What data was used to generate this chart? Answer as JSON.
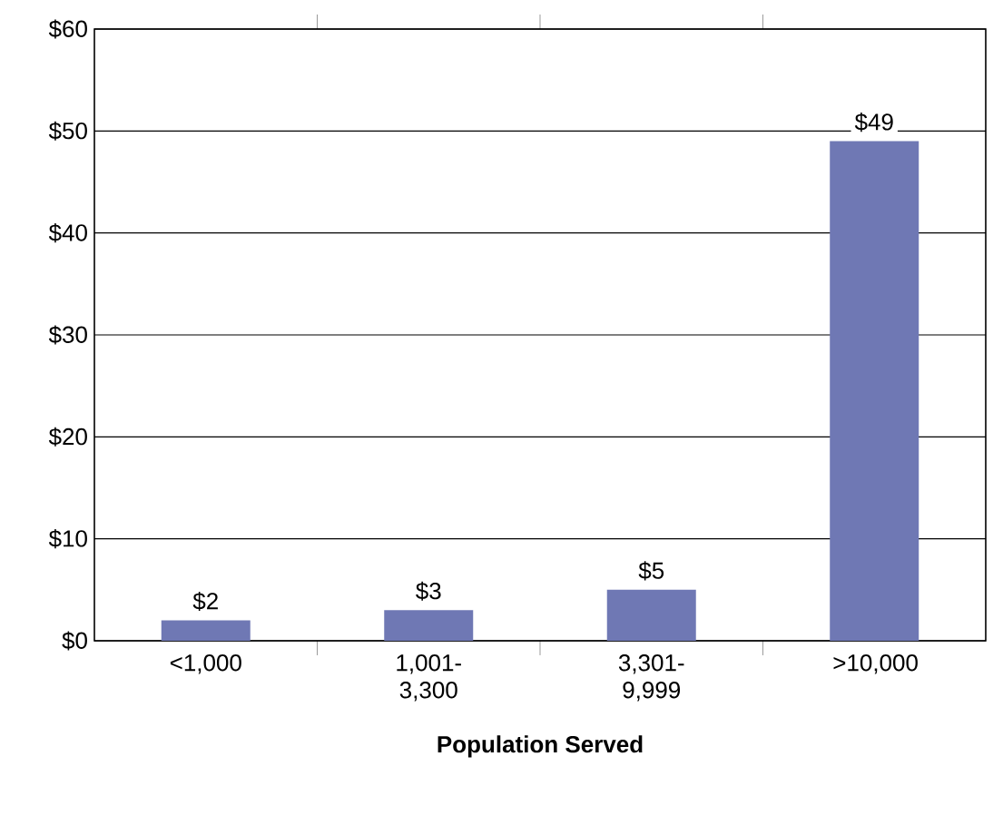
{
  "chart_data": {
    "type": "bar",
    "xlabel": "Population Served",
    "categories": [
      "<1,000",
      "1,001-3,300",
      "3,301-9,999",
      ">10,000"
    ],
    "values": [
      2,
      3,
      5,
      49
    ],
    "value_labels": [
      "$2",
      "$3",
      "$5",
      "$49"
    ],
    "color": "#6f78b4",
    "ylim": [
      0,
      60
    ],
    "yticks": [
      {
        "value": 0,
        "label": "$0"
      },
      {
        "value": 10,
        "label": "$10"
      },
      {
        "value": 20,
        "label": "$20"
      },
      {
        "value": 30,
        "label": "$30"
      },
      {
        "value": 40,
        "label": "$40"
      },
      {
        "value": 50,
        "label": "$50"
      },
      {
        "value": 60,
        "label": "$60"
      }
    ],
    "grid": "y"
  }
}
